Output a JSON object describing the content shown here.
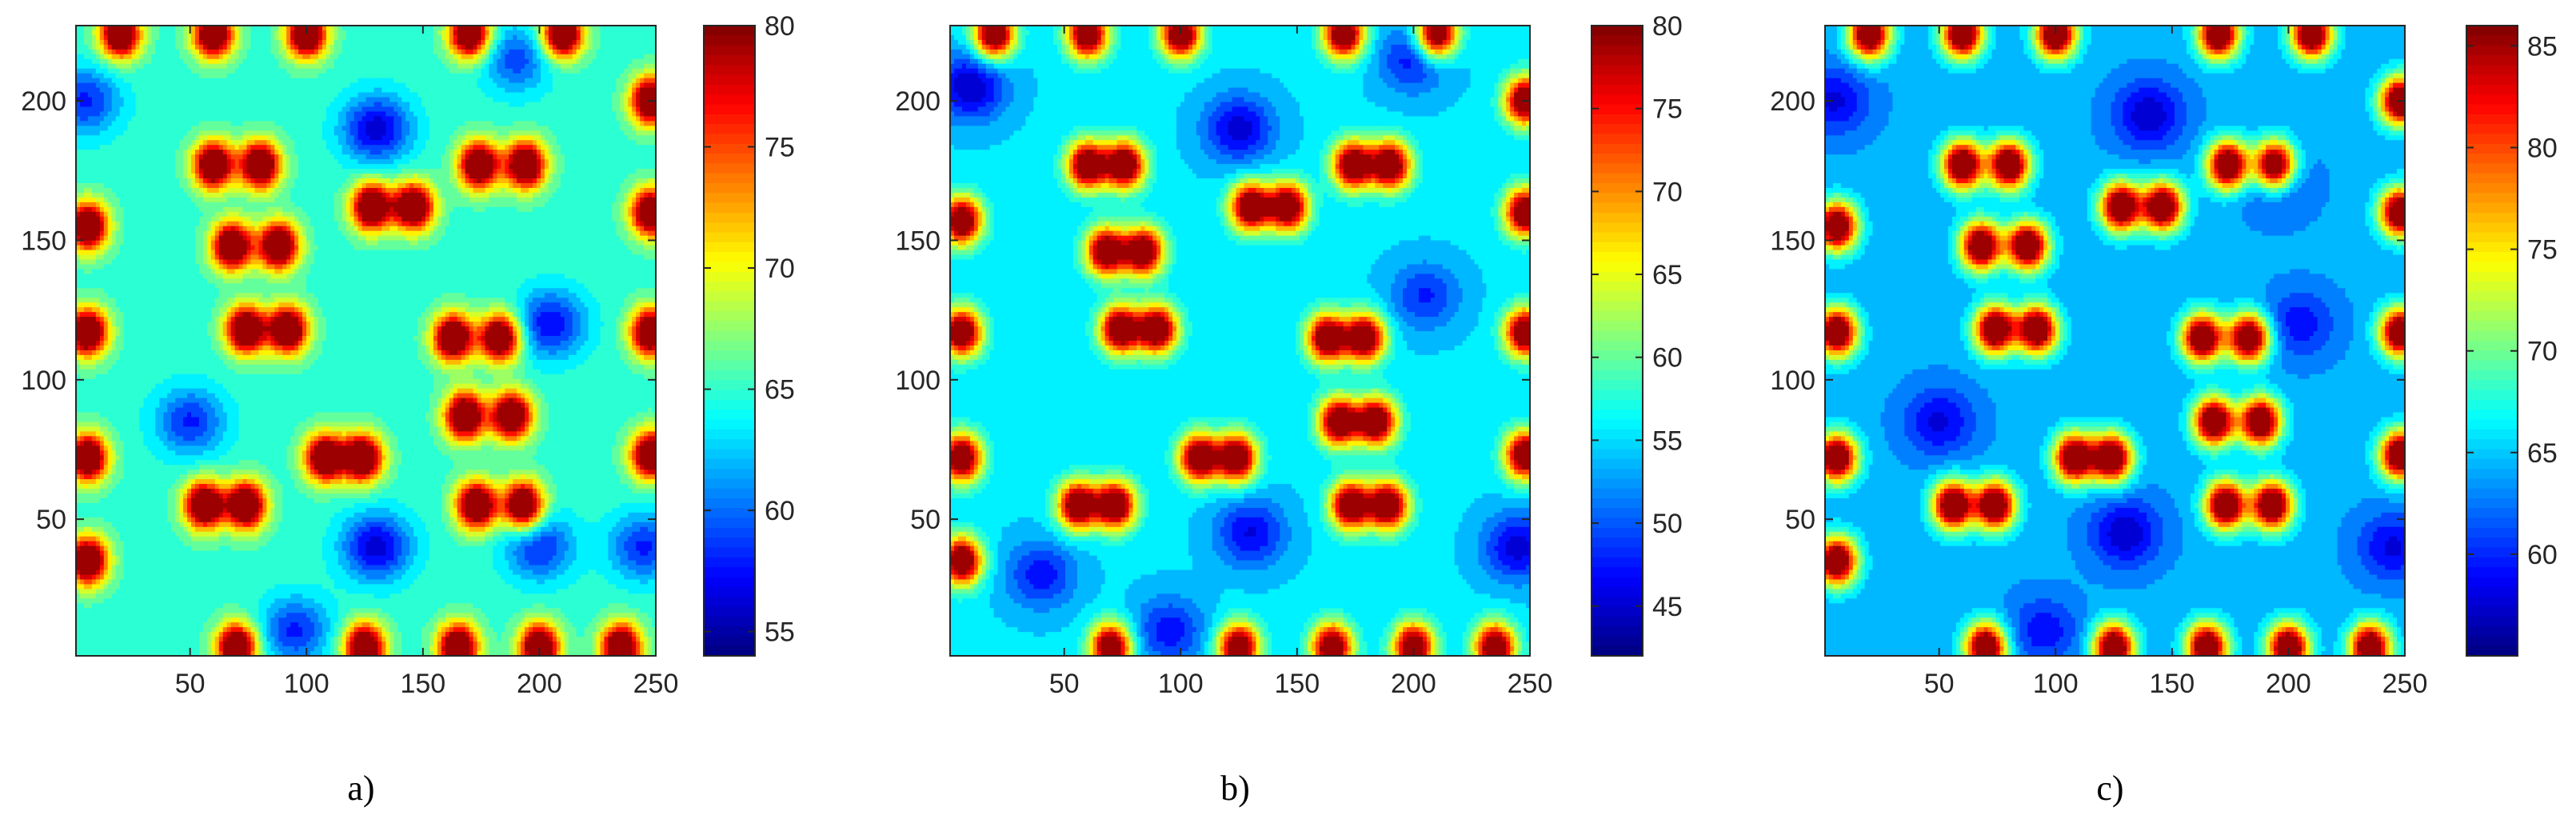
{
  "chart_data": [
    {
      "type": "heatmap",
      "caption": "a)",
      "xlim": [
        1,
        250
      ],
      "ylim": [
        1,
        227
      ],
      "xticks": [
        50,
        100,
        150,
        200,
        250
      ],
      "yticks": [
        50,
        100,
        150,
        200
      ],
      "colorbar": {
        "min": 54,
        "max": 80,
        "ticks": [
          55,
          60,
          65,
          70,
          75,
          80
        ]
      },
      "colormap": "jet",
      "background": 65,
      "hot_spots": [
        {
          "x": 60,
          "y": 177,
          "v": 80
        },
        {
          "x": 80,
          "y": 177,
          "v": 80
        },
        {
          "x": 68,
          "y": 148,
          "v": 80
        },
        {
          "x": 88,
          "y": 148,
          "v": 80
        },
        {
          "x": 74,
          "y": 118,
          "v": 80
        },
        {
          "x": 92,
          "y": 118,
          "v": 80
        },
        {
          "x": 163,
          "y": 115,
          "v": 80
        },
        {
          "x": 183,
          "y": 115,
          "v": 80
        },
        {
          "x": 168,
          "y": 87,
          "v": 80
        },
        {
          "x": 188,
          "y": 87,
          "v": 80
        },
        {
          "x": 173,
          "y": 55,
          "v": 80
        },
        {
          "x": 193,
          "y": 55,
          "v": 80
        },
        {
          "x": 128,
          "y": 162,
          "v": 80
        },
        {
          "x": 146,
          "y": 162,
          "v": 80
        },
        {
          "x": 174,
          "y": 177,
          "v": 80
        },
        {
          "x": 194,
          "y": 177,
          "v": 80
        },
        {
          "x": 108,
          "y": 72,
          "v": 80
        },
        {
          "x": 124,
          "y": 72,
          "v": 80
        },
        {
          "x": 56,
          "y": 55,
          "v": 80
        },
        {
          "x": 74,
          "y": 55,
          "v": 80
        },
        {
          "x": 6,
          "y": 155,
          "v": 80
        },
        {
          "x": 6,
          "y": 117,
          "v": 80
        },
        {
          "x": 6,
          "y": 72,
          "v": 80
        },
        {
          "x": 6,
          "y": 35,
          "v": 80
        },
        {
          "x": 248,
          "y": 200,
          "v": 80
        },
        {
          "x": 248,
          "y": 160,
          "v": 80
        },
        {
          "x": 248,
          "y": 117,
          "v": 80
        },
        {
          "x": 248,
          "y": 73,
          "v": 80
        },
        {
          "x": 20,
          "y": 224,
          "v": 80
        },
        {
          "x": 60,
          "y": 224,
          "v": 80
        },
        {
          "x": 100,
          "y": 224,
          "v": 80
        },
        {
          "x": 170,
          "y": 224,
          "v": 80
        },
        {
          "x": 210,
          "y": 224,
          "v": 80
        },
        {
          "x": 70,
          "y": 4,
          "v": 80
        },
        {
          "x": 125,
          "y": 4,
          "v": 80
        },
        {
          "x": 165,
          "y": 4,
          "v": 80
        },
        {
          "x": 200,
          "y": 4,
          "v": 80
        },
        {
          "x": 235,
          "y": 4,
          "v": 80
        }
      ],
      "cold_spots": [
        {
          "x": 130,
          "y": 190,
          "v": 56
        },
        {
          "x": 205,
          "y": 120,
          "v": 57
        },
        {
          "x": 130,
          "y": 40,
          "v": 56
        },
        {
          "x": 50,
          "y": 85,
          "v": 58
        },
        {
          "x": 5,
          "y": 200,
          "v": 58
        },
        {
          "x": 245,
          "y": 40,
          "v": 58
        },
        {
          "x": 95,
          "y": 10,
          "v": 58
        },
        {
          "x": 200,
          "y": 40,
          "v": 58
        },
        {
          "x": 190,
          "y": 215,
          "v": 59
        }
      ]
    },
    {
      "type": "heatmap",
      "caption": "b)",
      "xlim": [
        1,
        250
      ],
      "ylim": [
        1,
        227
      ],
      "xticks": [
        50,
        100,
        150,
        200,
        250
      ],
      "yticks": [
        50,
        100,
        150,
        200
      ],
      "colorbar": {
        "min": 42,
        "max": 80,
        "ticks": [
          45,
          50,
          55,
          60,
          65,
          70,
          75,
          80
        ]
      },
      "colormap": "jet",
      "background": 55,
      "hot_spots": [
        {
          "x": 60,
          "y": 177,
          "v": 80
        },
        {
          "x": 76,
          "y": 177,
          "v": 80
        },
        {
          "x": 68,
          "y": 146,
          "v": 80
        },
        {
          "x": 84,
          "y": 146,
          "v": 80
        },
        {
          "x": 74,
          "y": 118,
          "v": 80
        },
        {
          "x": 90,
          "y": 118,
          "v": 80
        },
        {
          "x": 163,
          "y": 115,
          "v": 80
        },
        {
          "x": 179,
          "y": 115,
          "v": 80
        },
        {
          "x": 168,
          "y": 85,
          "v": 80
        },
        {
          "x": 184,
          "y": 85,
          "v": 80
        },
        {
          "x": 173,
          "y": 55,
          "v": 80
        },
        {
          "x": 189,
          "y": 55,
          "v": 80
        },
        {
          "x": 130,
          "y": 162,
          "v": 80
        },
        {
          "x": 146,
          "y": 162,
          "v": 80
        },
        {
          "x": 174,
          "y": 177,
          "v": 80
        },
        {
          "x": 190,
          "y": 177,
          "v": 80
        },
        {
          "x": 108,
          "y": 72,
          "v": 80
        },
        {
          "x": 124,
          "y": 72,
          "v": 80
        },
        {
          "x": 56,
          "y": 55,
          "v": 80
        },
        {
          "x": 72,
          "y": 55,
          "v": 80
        },
        {
          "x": 6,
          "y": 157,
          "v": 80
        },
        {
          "x": 6,
          "y": 117,
          "v": 80
        },
        {
          "x": 6,
          "y": 72,
          "v": 80
        },
        {
          "x": 6,
          "y": 35,
          "v": 80
        },
        {
          "x": 248,
          "y": 200,
          "v": 80
        },
        {
          "x": 248,
          "y": 160,
          "v": 80
        },
        {
          "x": 248,
          "y": 117,
          "v": 80
        },
        {
          "x": 248,
          "y": 73,
          "v": 80
        },
        {
          "x": 20,
          "y": 224,
          "v": 80
        },
        {
          "x": 60,
          "y": 224,
          "v": 80
        },
        {
          "x": 100,
          "y": 224,
          "v": 80
        },
        {
          "x": 170,
          "y": 224,
          "v": 80
        },
        {
          "x": 210,
          "y": 224,
          "v": 80
        },
        {
          "x": 70,
          "y": 4,
          "v": 80
        },
        {
          "x": 125,
          "y": 4,
          "v": 80
        },
        {
          "x": 165,
          "y": 4,
          "v": 80
        },
        {
          "x": 200,
          "y": 4,
          "v": 80
        },
        {
          "x": 235,
          "y": 4,
          "v": 80
        }
      ],
      "cold_spots": [
        {
          "x": 125,
          "y": 190,
          "v": 45
        },
        {
          "x": 10,
          "y": 205,
          "v": 44
        },
        {
          "x": 130,
          "y": 45,
          "v": 46
        },
        {
          "x": 245,
          "y": 40,
          "v": 45
        },
        {
          "x": 200,
          "y": 215,
          "v": 47
        },
        {
          "x": 95,
          "y": 10,
          "v": 47
        },
        {
          "x": 40,
          "y": 30,
          "v": 47
        },
        {
          "x": 205,
          "y": 130,
          "v": 48
        }
      ]
    },
    {
      "type": "heatmap",
      "caption": "c)",
      "xlim": [
        1,
        250
      ],
      "ylim": [
        1,
        227
      ],
      "xticks": [
        50,
        100,
        150,
        200,
        250
      ],
      "yticks": [
        50,
        100,
        150,
        200
      ],
      "colorbar": {
        "min": 55,
        "max": 86,
        "ticks": [
          60,
          65,
          70,
          75,
          80,
          85
        ]
      },
      "colormap": "jet",
      "background": 64,
      "hot_spots": [
        {
          "x": 60,
          "y": 177,
          "v": 86
        },
        {
          "x": 80,
          "y": 177,
          "v": 86
        },
        {
          "x": 68,
          "y": 148,
          "v": 86
        },
        {
          "x": 88,
          "y": 148,
          "v": 86
        },
        {
          "x": 74,
          "y": 118,
          "v": 86
        },
        {
          "x": 92,
          "y": 118,
          "v": 86
        },
        {
          "x": 163,
          "y": 115,
          "v": 86
        },
        {
          "x": 183,
          "y": 115,
          "v": 86
        },
        {
          "x": 168,
          "y": 85,
          "v": 86
        },
        {
          "x": 188,
          "y": 85,
          "v": 86
        },
        {
          "x": 173,
          "y": 55,
          "v": 86
        },
        {
          "x": 193,
          "y": 55,
          "v": 86
        },
        {
          "x": 128,
          "y": 162,
          "v": 86
        },
        {
          "x": 146,
          "y": 162,
          "v": 86
        },
        {
          "x": 174,
          "y": 177,
          "v": 86
        },
        {
          "x": 194,
          "y": 177,
          "v": 86
        },
        {
          "x": 108,
          "y": 72,
          "v": 86
        },
        {
          "x": 124,
          "y": 72,
          "v": 86
        },
        {
          "x": 56,
          "y": 55,
          "v": 86
        },
        {
          "x": 74,
          "y": 55,
          "v": 86
        },
        {
          "x": 6,
          "y": 155,
          "v": 86
        },
        {
          "x": 6,
          "y": 117,
          "v": 86
        },
        {
          "x": 6,
          "y": 72,
          "v": 86
        },
        {
          "x": 6,
          "y": 35,
          "v": 86
        },
        {
          "x": 248,
          "y": 200,
          "v": 86
        },
        {
          "x": 248,
          "y": 160,
          "v": 86
        },
        {
          "x": 248,
          "y": 117,
          "v": 86
        },
        {
          "x": 248,
          "y": 73,
          "v": 86
        },
        {
          "x": 20,
          "y": 224,
          "v": 86
        },
        {
          "x": 60,
          "y": 224,
          "v": 86
        },
        {
          "x": 100,
          "y": 224,
          "v": 86
        },
        {
          "x": 170,
          "y": 224,
          "v": 86
        },
        {
          "x": 210,
          "y": 224,
          "v": 86
        },
        {
          "x": 70,
          "y": 4,
          "v": 86
        },
        {
          "x": 125,
          "y": 4,
          "v": 86
        },
        {
          "x": 165,
          "y": 4,
          "v": 86
        },
        {
          "x": 200,
          "y": 4,
          "v": 86
        },
        {
          "x": 235,
          "y": 4,
          "v": 86
        }
      ],
      "cold_spots": [
        {
          "x": 140,
          "y": 195,
          "v": 57
        },
        {
          "x": 130,
          "y": 45,
          "v": 57
        },
        {
          "x": 50,
          "y": 85,
          "v": 58
        },
        {
          "x": 5,
          "y": 200,
          "v": 58
        },
        {
          "x": 245,
          "y": 40,
          "v": 58
        },
        {
          "x": 195,
          "y": 170,
          "v": 60
        },
        {
          "x": 205,
          "y": 120,
          "v": 59
        },
        {
          "x": 95,
          "y": 10,
          "v": 59
        }
      ]
    }
  ]
}
